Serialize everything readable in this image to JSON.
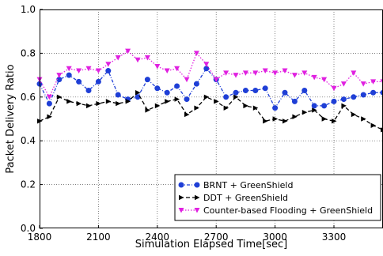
{
  "chart_data": {
    "type": "line",
    "title": "",
    "xlabel": "Simulation Elapsed Time[sec]",
    "ylabel": "Packet Delivery Ratio",
    "xlim": [
      1800,
      3550
    ],
    "ylim": [
      0.0,
      1.0
    ],
    "xticks": [
      1800,
      2100,
      2400,
      2700,
      3000,
      3300
    ],
    "xtick_labels": [
      "1800",
      "2100",
      "2400",
      "2700",
      "3000",
      "3300"
    ],
    "yticks": [
      0.0,
      0.2,
      0.4,
      0.6,
      0.8,
      1.0
    ],
    "ytick_labels": [
      "0.0",
      "0.2",
      "0.4",
      "0.6",
      "0.8",
      "1.0"
    ],
    "grid": true,
    "legend_position": "bottom-right",
    "x": [
      1800,
      1850,
      1900,
      1950,
      2000,
      2050,
      2100,
      2150,
      2200,
      2250,
      2300,
      2350,
      2400,
      2450,
      2500,
      2550,
      2600,
      2650,
      2700,
      2750,
      2800,
      2850,
      2900,
      2950,
      3000,
      3050,
      3100,
      3150,
      3200,
      3250,
      3300,
      3350,
      3400,
      3450,
      3500,
      3550
    ],
    "series": [
      {
        "name": "BRNT + GreenShield",
        "color": "#1f3fd6",
        "line_style": "dash-dot",
        "marker": "circle",
        "values": [
          0.66,
          0.57,
          0.68,
          0.7,
          0.67,
          0.63,
          0.67,
          0.72,
          0.61,
          0.59,
          0.6,
          0.68,
          0.64,
          0.62,
          0.65,
          0.59,
          0.66,
          0.73,
          0.68,
          0.6,
          0.62,
          0.63,
          0.63,
          0.64,
          0.55,
          0.62,
          0.58,
          0.63,
          0.56,
          0.56,
          0.58,
          0.59,
          0.6,
          0.61,
          0.62,
          0.62
        ]
      },
      {
        "name": "DDT + GreenShield",
        "color": "#000000",
        "line_style": "dashed",
        "marker": "triangle-right",
        "values": [
          0.49,
          0.51,
          0.6,
          0.58,
          0.57,
          0.56,
          0.57,
          0.58,
          0.57,
          0.58,
          0.62,
          0.54,
          0.56,
          0.58,
          0.59,
          0.52,
          0.55,
          0.6,
          0.58,
          0.55,
          0.6,
          0.56,
          0.55,
          0.49,
          0.5,
          0.49,
          0.51,
          0.53,
          0.54,
          0.5,
          0.49,
          0.56,
          0.52,
          0.5,
          0.47,
          0.45
        ]
      },
      {
        "name": "Counter-based Flooding + GreenShield",
        "color": "#e020e0",
        "line_style": "dotted",
        "marker": "triangle-down",
        "values": [
          0.68,
          0.6,
          0.7,
          0.73,
          0.72,
          0.73,
          0.72,
          0.75,
          0.78,
          0.81,
          0.77,
          0.78,
          0.74,
          0.72,
          0.73,
          0.68,
          0.8,
          0.75,
          0.68,
          0.71,
          0.7,
          0.71,
          0.71,
          0.72,
          0.71,
          0.72,
          0.7,
          0.71,
          0.69,
          0.68,
          0.64,
          0.66,
          0.71,
          0.66,
          0.67,
          0.67
        ]
      }
    ]
  }
}
